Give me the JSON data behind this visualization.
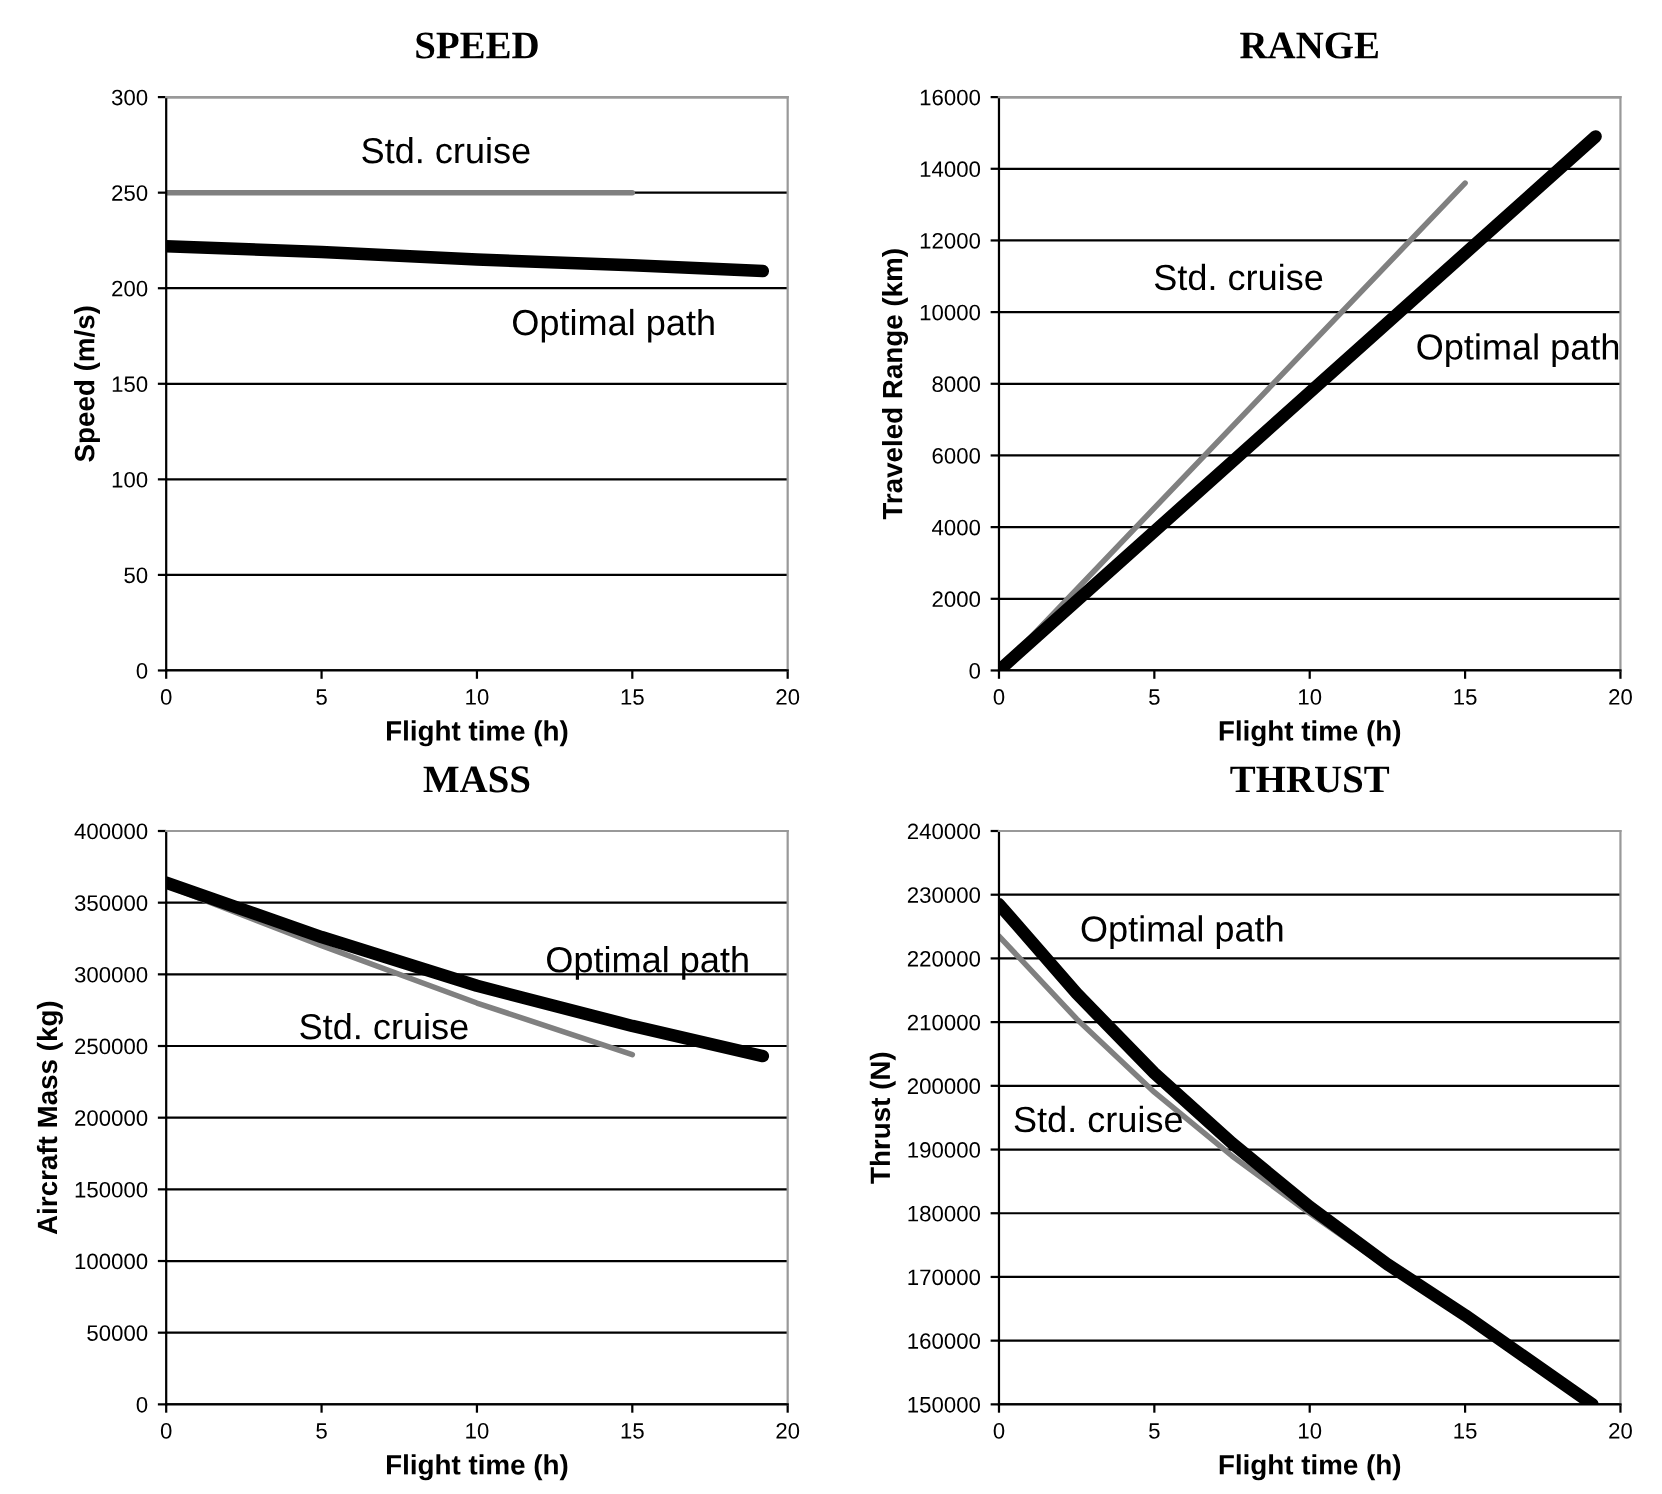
{
  "chart_data": [
    {
      "type": "line",
      "title": "SPEED",
      "xlabel": "Flight time (h)",
      "ylabel": "Speed (m/s)",
      "xlim": [
        0,
        20
      ],
      "xticks": [
        0,
        5,
        10,
        15,
        20
      ],
      "ylim": [
        0,
        300
      ],
      "yticks": [
        0,
        50,
        100,
        150,
        200,
        250,
        300
      ],
      "grid": "y",
      "series": [
        {
          "name": "Std. cruise",
          "color": "#808080",
          "x": [
            0,
            15
          ],
          "values": [
            250,
            250
          ]
        },
        {
          "name": "Optimal path",
          "color": "#000000",
          "x": [
            0,
            5,
            10,
            15,
            19.2
          ],
          "values": [
            222,
            219,
            215,
            212,
            209
          ]
        }
      ]
    },
    {
      "type": "line",
      "title": "RANGE",
      "xlabel": "Flight time (h)",
      "ylabel": "Traveled Range (km)",
      "xlim": [
        0,
        20
      ],
      "xticks": [
        0,
        5,
        10,
        15,
        20
      ],
      "ylim": [
        0,
        16000
      ],
      "yticks": [
        0,
        2000,
        4000,
        6000,
        8000,
        10000,
        12000,
        14000,
        16000
      ],
      "grid": "y",
      "series": [
        {
          "name": "Std. cruise",
          "color": "#808080",
          "x": [
            0,
            15
          ],
          "values": [
            0,
            13600
          ]
        },
        {
          "name": "Optimal path",
          "color": "#000000",
          "x": [
            0,
            19.2
          ],
          "values": [
            0,
            14900
          ]
        }
      ]
    },
    {
      "type": "line",
      "title": "MASS",
      "xlabel": "Flight time (h)",
      "ylabel": "Aircraft Mass (kg)",
      "xlim": [
        0,
        20
      ],
      "xticks": [
        0,
        5,
        10,
        15,
        20
      ],
      "ylim": [
        0,
        400000
      ],
      "yticks": [
        0,
        50000,
        100000,
        150000,
        200000,
        250000,
        300000,
        350000,
        400000
      ],
      "grid": "y",
      "series": [
        {
          "name": "Std. cruise",
          "color": "#808080",
          "x": [
            0,
            5,
            10,
            15
          ],
          "values": [
            362000,
            320000,
            280000,
            244000
          ]
        },
        {
          "name": "Optimal path",
          "color": "#000000",
          "x": [
            0,
            5,
            10,
            15,
            19.2
          ],
          "values": [
            364000,
            326000,
            292000,
            264000,
            243000
          ]
        }
      ]
    },
    {
      "type": "line",
      "title": "THRUST",
      "xlabel": "Flight time (h)",
      "ylabel": "Thrust (N)",
      "xlim": [
        0,
        20
      ],
      "xticks": [
        0,
        5,
        10,
        15,
        20
      ],
      "ylim": [
        150000,
        240000
      ],
      "yticks": [
        150000,
        160000,
        170000,
        180000,
        190000,
        200000,
        210000,
        220000,
        230000,
        240000
      ],
      "grid": "y",
      "series": [
        {
          "name": "Std. cruise",
          "color": "#808080",
          "x": [
            0,
            2.5,
            5,
            7.5,
            10,
            12.5,
            15
          ],
          "values": [
            223500,
            210500,
            199000,
            189000,
            180000,
            171500,
            164000
          ]
        },
        {
          "name": "Optimal path",
          "color": "#000000",
          "x": [
            0,
            2.5,
            5,
            7.5,
            10,
            12.5,
            15,
            19.1
          ],
          "values": [
            228500,
            214500,
            202000,
            191000,
            181000,
            172000,
            164000,
            150000
          ]
        }
      ]
    }
  ]
}
